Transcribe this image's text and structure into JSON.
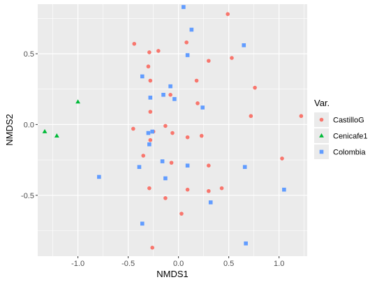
{
  "chart_data": {
    "type": "scatter",
    "xlabel": "NMDS1",
    "ylabel": "NMDS2",
    "xlim": [
      -1.4,
      1.28
    ],
    "ylim": [
      -0.93,
      0.85
    ],
    "x_ticks": [
      -1.0,
      -0.5,
      0.0,
      0.5,
      1.0
    ],
    "x_tick_labels": [
      "-1.0",
      "-0.5",
      "0.0",
      "0.5",
      "1.0"
    ],
    "y_ticks": [
      -0.5,
      0.0,
      0.5
    ],
    "y_tick_labels": [
      "-0.5",
      "0.0",
      "0.5"
    ],
    "grid": true,
    "legend_title": "Var.",
    "legend_position": "right",
    "series": [
      {
        "name": "CastilloG",
        "color": "#F8766D",
        "marker": "circle",
        "points": [
          [
            0.49,
            0.78
          ],
          [
            -0.44,
            0.57
          ],
          [
            0.08,
            0.58
          ],
          [
            -0.29,
            0.51
          ],
          [
            -0.2,
            0.52
          ],
          [
            0.3,
            0.45
          ],
          [
            0.53,
            0.47
          ],
          [
            -0.3,
            0.41
          ],
          [
            -0.28,
            0.31
          ],
          [
            0.18,
            0.31
          ],
          [
            0.76,
            0.26
          ],
          [
            -0.08,
            0.21
          ],
          [
            0.19,
            0.15
          ],
          [
            -0.28,
            0.09
          ],
          [
            0.72,
            0.06
          ],
          [
            1.22,
            0.06
          ],
          [
            -0.13,
            -0.01
          ],
          [
            -0.45,
            -0.03
          ],
          [
            -0.25,
            -0.05
          ],
          [
            -0.06,
            -0.06
          ],
          [
            0.23,
            -0.08
          ],
          [
            0.09,
            -0.09
          ],
          [
            -0.28,
            -0.11
          ],
          [
            -0.35,
            -0.22
          ],
          [
            1.03,
            -0.24
          ],
          [
            -0.07,
            -0.27
          ],
          [
            0.3,
            -0.29
          ],
          [
            -0.29,
            -0.45
          ],
          [
            0.09,
            -0.46
          ],
          [
            0.3,
            -0.47
          ],
          [
            0.43,
            -0.45
          ],
          [
            -0.13,
            -0.52
          ],
          [
            0.03,
            -0.63
          ],
          [
            -0.26,
            -0.87
          ]
        ]
      },
      {
        "name": "Cenicafe1",
        "color": "#00BA38",
        "marker": "triangle",
        "points": [
          [
            -1.0,
            0.16
          ],
          [
            -1.33,
            -0.05
          ],
          [
            -1.21,
            -0.08
          ]
        ]
      },
      {
        "name": "Colombia",
        "color": "#619CFF",
        "marker": "square",
        "points": [
          [
            0.05,
            0.83
          ],
          [
            0.13,
            0.67
          ],
          [
            0.65,
            0.56
          ],
          [
            0.09,
            0.49
          ],
          [
            -0.36,
            0.34
          ],
          [
            -0.08,
            0.27
          ],
          [
            -0.15,
            0.21
          ],
          [
            -0.28,
            0.19
          ],
          [
            -0.04,
            0.18
          ],
          [
            0.24,
            0.12
          ],
          [
            -0.26,
            -0.05
          ],
          [
            -0.3,
            -0.06
          ],
          [
            -0.29,
            -0.14
          ],
          [
            -0.16,
            -0.26
          ],
          [
            -0.39,
            -0.3
          ],
          [
            0.09,
            -0.29
          ],
          [
            0.66,
            -0.3
          ],
          [
            -0.79,
            -0.37
          ],
          [
            -0.13,
            -0.38
          ],
          [
            1.05,
            -0.46
          ],
          [
            0.32,
            -0.55
          ],
          [
            -0.36,
            -0.7
          ],
          [
            0.67,
            -0.84
          ]
        ]
      }
    ]
  }
}
